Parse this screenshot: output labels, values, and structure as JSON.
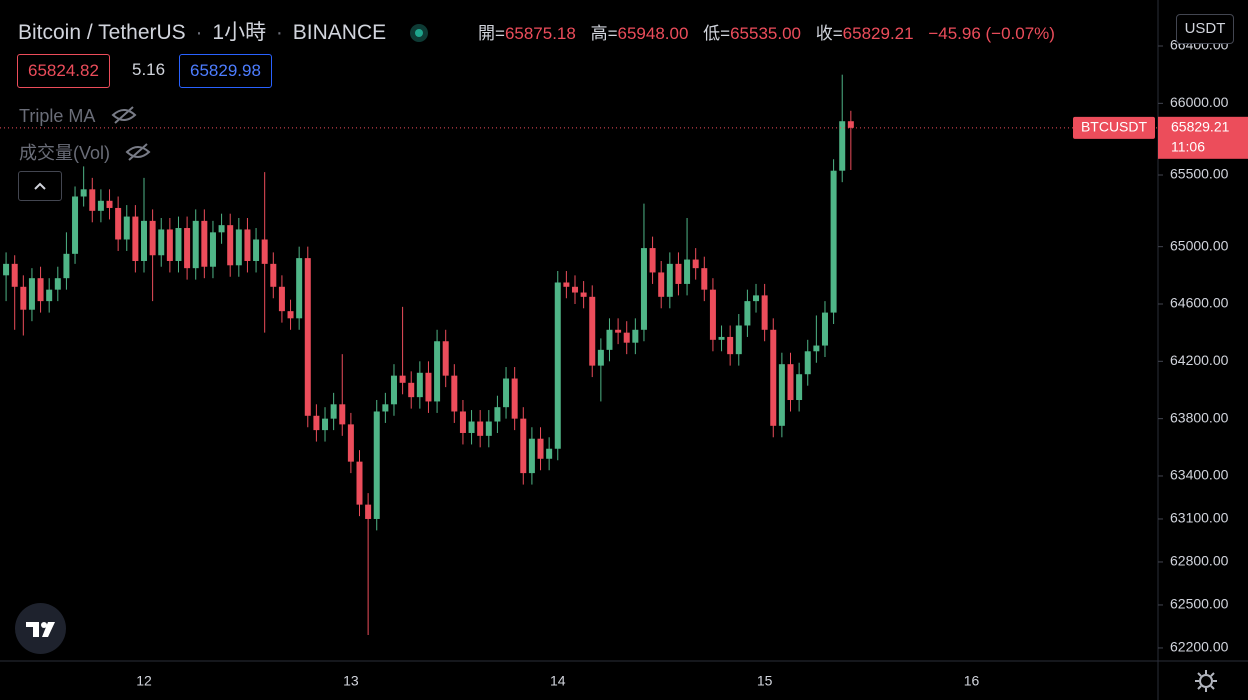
{
  "header": {
    "symbol": "Bitcoin / TetherUS",
    "interval": "1小時",
    "exchange": "BINANCE",
    "ohlc": [
      {
        "label": "開=",
        "value": "65875.18"
      },
      {
        "label": "高=",
        "value": "65948.00"
      },
      {
        "label": "低=",
        "value": "65535.00"
      },
      {
        "label": "收=",
        "value": "65829.21"
      }
    ],
    "change": "−45.96 (−0.07%)",
    "bid": "65824.82",
    "spread": "5.16",
    "ask": "65829.98",
    "indicators": [
      "Triple MA",
      "成交量(Vol)"
    ],
    "currency": "USDT"
  },
  "chart_data": {
    "type": "candlestick",
    "open": [
      64800,
      64880,
      64720,
      64560,
      64780,
      64620,
      64700,
      64780,
      64950,
      65350,
      65400,
      65250,
      65320,
      65270,
      65050,
      65210,
      64900,
      65180,
      64940,
      65120,
      64900,
      65130,
      64850,
      65180,
      64860,
      65100,
      65150,
      64870,
      65120,
      64900,
      65050,
      64880,
      64720,
      64550,
      64500,
      64920,
      63820,
      63720,
      63800,
      63900,
      63760,
      63500,
      63200,
      63100,
      63850,
      63900,
      64100,
      64050,
      63950,
      64120,
      63920,
      64340,
      64100,
      63850,
      63700,
      63780,
      63680,
      63780,
      63880,
      64080,
      63800,
      63420,
      63660,
      63520,
      63590,
      64750,
      64720,
      64680,
      64650,
      64170,
      64280,
      64420,
      64400,
      64330,
      64420,
      64990,
      64820,
      64650,
      64880,
      64740,
      64910,
      64850,
      64700,
      64350,
      64370,
      64250,
      64450,
      64620,
      64660,
      64420,
      63750,
      64180,
      63930,
      64110,
      64270,
      64310,
      64540,
      65530,
      65875.18
    ],
    "high": [
      64960,
      64940,
      64800,
      64850,
      64860,
      64780,
      64860,
      65100,
      65420,
      65560,
      65480,
      65400,
      65400,
      65350,
      65290,
      65290,
      65480,
      65260,
      65200,
      65200,
      65210,
      65210,
      65260,
      65260,
      65180,
      65230,
      65230,
      65200,
      65200,
      65130,
      65520,
      64960,
      64800,
      64630,
      65000,
      65000,
      63900,
      63880,
      63980,
      64250,
      63840,
      63580,
      63280,
      63930,
      63980,
      64180,
      64580,
      64130,
      64200,
      64200,
      64420,
      64420,
      64180,
      63930,
      63860,
      63860,
      63860,
      63960,
      64160,
      64160,
      63880,
      63740,
      63740,
      63670,
      64830,
      64830,
      64800,
      64760,
      64730,
      64360,
      64500,
      64500,
      64480,
      64500,
      65300,
      65070,
      64900,
      64960,
      64960,
      65200,
      64990,
      64930,
      64780,
      64450,
      64450,
      64530,
      64700,
      64740,
      64740,
      64500,
      64260,
      64260,
      64190,
      64350,
      64520,
      64620,
      65610,
      66200,
      65948
    ],
    "low": [
      64620,
      64420,
      64380,
      64480,
      64540,
      64540,
      64620,
      64700,
      64880,
      65280,
      65170,
      65170,
      65190,
      64970,
      64970,
      64820,
      64820,
      64620,
      64860,
      64820,
      64820,
      64770,
      64770,
      64780,
      64780,
      65020,
      64790,
      64790,
      64820,
      64820,
      64400,
      64640,
      64470,
      64420,
      64420,
      63740,
      63640,
      63640,
      63720,
      63680,
      63420,
      63120,
      62290,
      63020,
      63770,
      63820,
      63970,
      63870,
      63870,
      63840,
      63840,
      64020,
      63770,
      63620,
      63620,
      63600,
      63600,
      63700,
      63800,
      63720,
      63340,
      63340,
      63440,
      63440,
      63510,
      64640,
      64600,
      64570,
      64090,
      63920,
      64200,
      64320,
      64250,
      64250,
      64340,
      64740,
      64570,
      64570,
      64660,
      64660,
      64770,
      64620,
      64270,
      64270,
      64170,
      64170,
      64370,
      64540,
      64340,
      63670,
      63670,
      63850,
      63850,
      64030,
      64190,
      64230,
      64460,
      65450,
      65535
    ],
    "close": [
      64880,
      64720,
      64560,
      64780,
      64620,
      64700,
      64780,
      64950,
      65350,
      65400,
      65250,
      65320,
      65270,
      65050,
      65210,
      64900,
      65180,
      64940,
      65120,
      64900,
      65130,
      64850,
      65180,
      64860,
      65100,
      65150,
      64870,
      65120,
      64900,
      65050,
      64880,
      64720,
      64550,
      64500,
      64920,
      63820,
      63720,
      63800,
      63900,
      63760,
      63500,
      63200,
      63100,
      63850,
      63900,
      64100,
      64050,
      63950,
      64120,
      63920,
      64340,
      64100,
      63850,
      63700,
      63780,
      63680,
      63780,
      63880,
      64080,
      63800,
      63420,
      63660,
      63520,
      63590,
      64750,
      64720,
      64680,
      64650,
      64170,
      64280,
      64420,
      64400,
      64330,
      64420,
      64990,
      64820,
      64650,
      64880,
      64740,
      64910,
      64850,
      64700,
      64350,
      64370,
      64250,
      64450,
      64620,
      64660,
      64420,
      63750,
      64180,
      63930,
      64110,
      64270,
      64310,
      64540,
      65530,
      65875.18,
      65829.21
    ],
    "up_color": "#4fb587",
    "down_color": "#ec4d5b",
    "ylim": [
      62116,
      66721
    ],
    "yticks": [
      {
        "value": 66400,
        "label": "66400.00"
      },
      {
        "value": 66000,
        "label": "66000.00"
      },
      {
        "value": 65500,
        "label": "65500.00"
      },
      {
        "value": 65000,
        "label": "65000.00"
      },
      {
        "value": 64600,
        "label": "64600.00"
      },
      {
        "value": 64200,
        "label": "64200.00"
      },
      {
        "value": 63800,
        "label": "63800.00"
      },
      {
        "value": 63400,
        "label": "63400.00"
      },
      {
        "value": 63100,
        "label": "63100.00"
      },
      {
        "value": 62800,
        "label": "62800.00"
      },
      {
        "value": 62500,
        "label": "62500.00"
      },
      {
        "value": 62200,
        "label": "62200.00"
      }
    ],
    "xticks": [
      "12",
      "13",
      "14",
      "15",
      "16"
    ],
    "price_tag": {
      "symbol": "BTCUSDT",
      "countdown": "11:06"
    }
  }
}
